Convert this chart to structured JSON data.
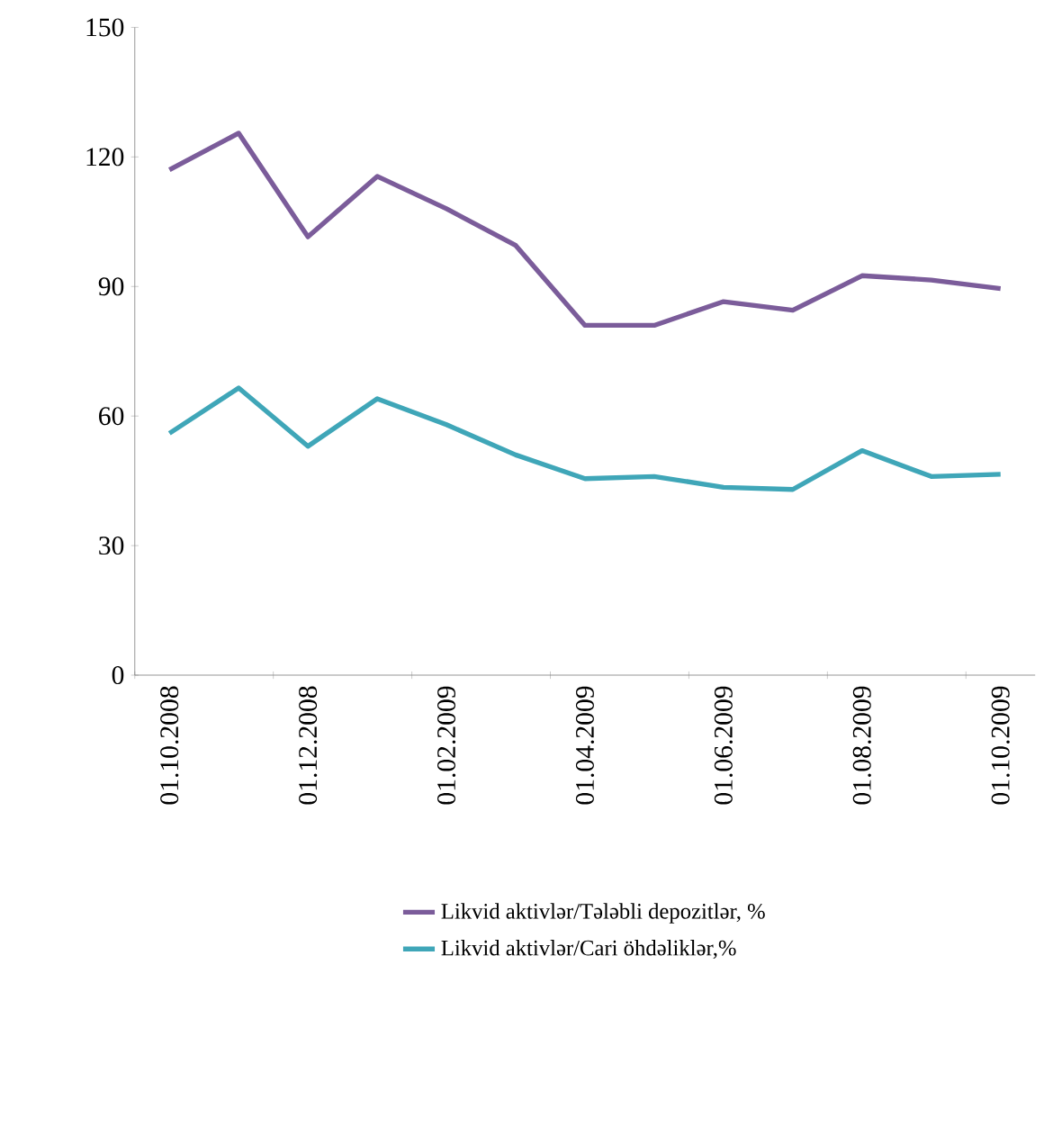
{
  "chart_data": {
    "type": "line",
    "categories": [
      "01.10.2008",
      null,
      "01.12.2008",
      null,
      "01.02.2009",
      null,
      "01.04.2009",
      null,
      "01.06.2009",
      null,
      "01.08.2009",
      null,
      "01.10.2009"
    ],
    "series": [
      {
        "name": "Likvid aktivlər/Tələbli depozitlər, %",
        "color": "#7b5c9a",
        "values": [
          117,
          125.5,
          101.5,
          115.5,
          108,
          99.5,
          81,
          81,
          86.5,
          84.5,
          92.5,
          91.5,
          89.5
        ]
      },
      {
        "name": "Likvid aktivlər/Cari öhdəliklər,%",
        "color": "#3fa6b8",
        "values": [
          56,
          66.5,
          53,
          64,
          58,
          51,
          45.5,
          46,
          43.5,
          43,
          52,
          46,
          46.5
        ]
      }
    ],
    "ylim": [
      0,
      150
    ],
    "yticks": [
      0,
      30,
      60,
      90,
      120,
      150
    ],
    "legend": "bottom",
    "grid": false,
    "line_style": "solid",
    "marker": "none"
  }
}
